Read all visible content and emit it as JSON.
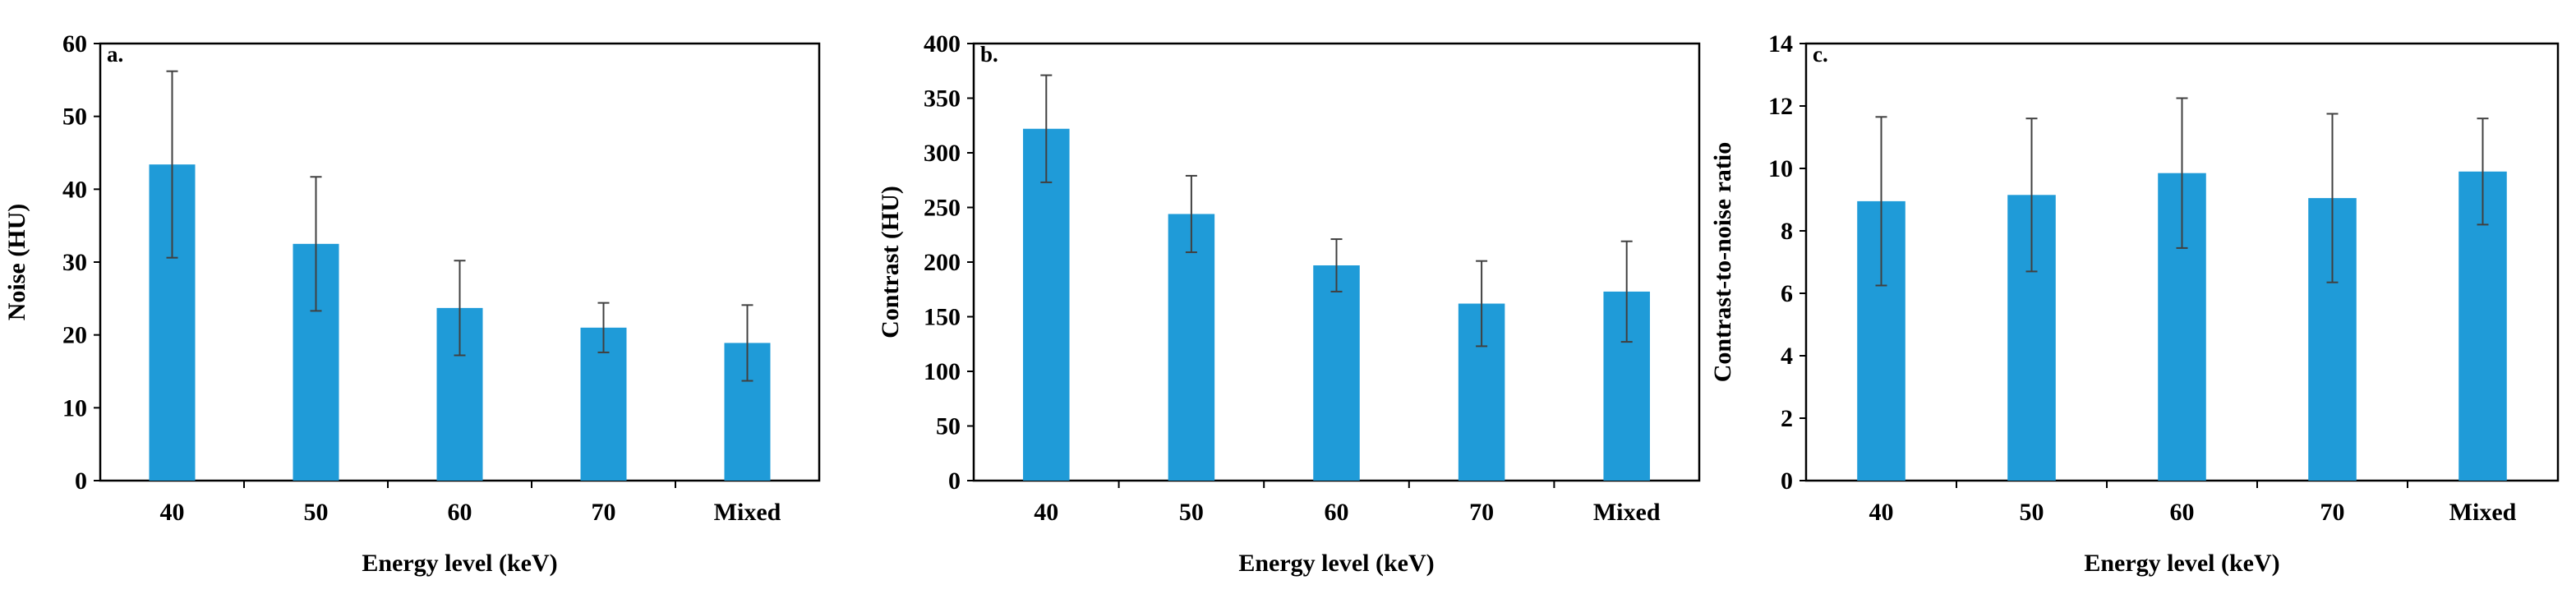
{
  "chart_data": [
    {
      "type": "bar",
      "panel": "a.",
      "title": "",
      "xlabel": "Energy level (keV)",
      "ylabel": "Noise (HU)",
      "categories": [
        "40",
        "50",
        "60",
        "70",
        "Mixed"
      ],
      "values": [
        43.4,
        32.5,
        23.7,
        21.0,
        18.9
      ],
      "errors": [
        12.8,
        9.2,
        6.5,
        3.4,
        5.2
      ],
      "ylim": [
        0,
        60
      ],
      "yticks": [
        0,
        10,
        20,
        30,
        40,
        50,
        60
      ],
      "bar_color": "#1F9BD8",
      "error_color": "#404040"
    },
    {
      "type": "bar",
      "panel": "b.",
      "title": "",
      "xlabel": "Energy level (keV)",
      "ylabel": "Contrast (HU)",
      "categories": [
        "40",
        "50",
        "60",
        "70",
        "Mixed"
      ],
      "values": [
        322,
        244,
        197,
        162,
        173
      ],
      "errors": [
        49,
        35,
        24,
        39,
        46
      ],
      "ylim": [
        0,
        400
      ],
      "yticks": [
        0,
        50,
        100,
        150,
        200,
        250,
        300,
        350,
        400
      ],
      "bar_color": "#1F9BD8",
      "error_color": "#404040"
    },
    {
      "type": "bar",
      "panel": "c.",
      "title": "",
      "xlabel": "Energy level (keV)",
      "ylabel": "Contrast-to-noise ratio",
      "categories": [
        "40",
        "50",
        "60",
        "70",
        "Mixed"
      ],
      "values": [
        8.95,
        9.15,
        9.85,
        9.05,
        9.9
      ],
      "errors": [
        2.7,
        2.45,
        2.4,
        2.7,
        1.7
      ],
      "ylim": [
        0,
        14
      ],
      "yticks": [
        0,
        2,
        4,
        6,
        8,
        10,
        12,
        14
      ],
      "bar_color": "#1F9BD8",
      "error_color": "#404040"
    }
  ]
}
